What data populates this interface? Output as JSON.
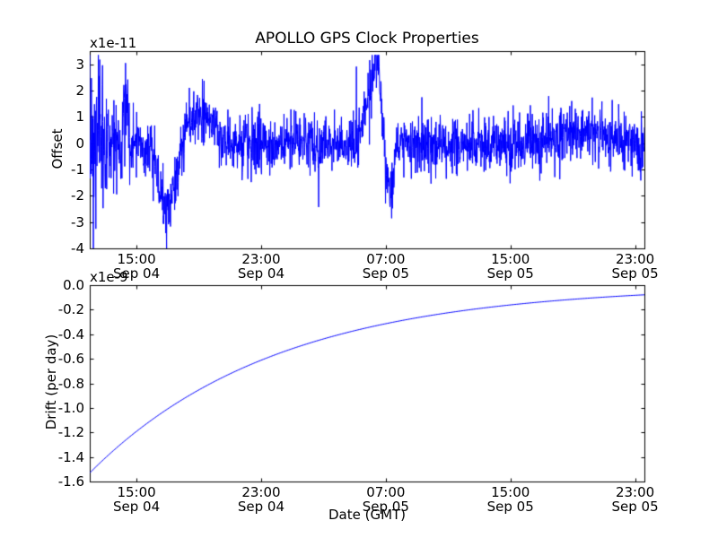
{
  "figure": {
    "background": "#ffffff",
    "line_color": "#0000ff",
    "axes_color": "#000000"
  },
  "chart_data": [
    {
      "type": "line",
      "title": "APOLLO GPS Clock Properties",
      "ylabel": "Offset",
      "y_scale_label": "x1e-11",
      "series_unit": "1e-11",
      "ylim": [
        -4,
        3.5
      ],
      "ytick_values": [
        3,
        2,
        1,
        0,
        -1,
        -2,
        -3,
        -4
      ],
      "ytick_labels": [
        "3",
        "2",
        "1",
        "0",
        "-1",
        "-2",
        "-3",
        "-4"
      ],
      "x_hours_range": [
        0,
        35.6
      ],
      "x_origin": "Sep 04 12:00 GMT",
      "grid": false,
      "legend": "none",
      "x_ticks": [
        {
          "hour": 3,
          "time": "15:00",
          "date": "Sep 04"
        },
        {
          "hour": 11,
          "time": "23:00",
          "date": "Sep 04"
        },
        {
          "hour": 19,
          "time": "07:00",
          "date": "Sep 05"
        },
        {
          "hour": 27,
          "time": "15:00",
          "date": "Sep 05"
        },
        {
          "hour": 35,
          "time": "23:00",
          "date": "Sep 05"
        }
      ],
      "signal": {
        "description": "noisy clock offset around 0 x1e-11 with excursions",
        "n_points": 2000,
        "seed": 7,
        "noise_std": 0.5,
        "noise_segments": [
          {
            "from": 0,
            "to": 1.1,
            "std": 1.6
          },
          {
            "from": 1.1,
            "to": 2.6,
            "std": 0.85
          },
          {
            "from": 4.3,
            "to": 6.1,
            "std": 0.6
          }
        ],
        "spike_prob": 0.025,
        "spike_scale": 2.4,
        "clip": [
          -4,
          3.35
        ],
        "features": [
          {
            "t": 2.3,
            "w": 0.12,
            "a": 2.0
          },
          {
            "t": 4.95,
            "w": 0.55,
            "a": -2.6
          },
          {
            "t": 7.0,
            "w": 0.9,
            "a": 1.1
          },
          {
            "t": 18.4,
            "w": 0.5,
            "a": 3.05
          },
          {
            "t": 19.15,
            "w": 0.3,
            "a": -2.7
          },
          {
            "t": 31.5,
            "w": 1.2,
            "a": 0.5
          }
        ]
      }
    },
    {
      "type": "line",
      "title": "",
      "ylabel": "Drift (per day)",
      "xlabel": "Date (GMT)",
      "y_scale_label": "x1e-9",
      "series_unit": "1e-9",
      "ylim": [
        -1.6,
        0.0
      ],
      "ytick_values": [
        0,
        -0.2,
        -0.4,
        -0.6,
        -0.8,
        -1.0,
        -1.2,
        -1.4,
        -1.6
      ],
      "ytick_labels": [
        "0.0",
        "-0.2",
        "-0.4",
        "-0.6",
        "-0.8",
        "-1.0",
        "-1.2",
        "-1.4",
        "-1.6"
      ],
      "x_hours_range": [
        0,
        35.6
      ],
      "x_origin": "Sep 04 12:00 GMT",
      "grid": false,
      "legend": "none",
      "x_ticks": [
        {
          "hour": 3,
          "time": "15:00",
          "date": "Sep 04"
        },
        {
          "hour": 11,
          "time": "23:00",
          "date": "Sep 04"
        },
        {
          "hour": 19,
          "time": "07:00",
          "date": "Sep 05"
        },
        {
          "hour": 27,
          "time": "15:00",
          "date": "Sep 05"
        },
        {
          "hour": 35,
          "time": "23:00",
          "date": "Sep 05"
        }
      ],
      "model": {
        "type": "exponential",
        "v0": -1.53,
        "tau_hours": 12
      },
      "points": [
        [
          0,
          -1.53
        ],
        [
          2,
          -1.295
        ],
        [
          4,
          -1.096
        ],
        [
          6,
          -0.928
        ],
        [
          8,
          -0.786
        ],
        [
          10,
          -0.665
        ],
        [
          12,
          -0.563
        ],
        [
          14,
          -0.476
        ],
        [
          16,
          -0.403
        ],
        [
          18,
          -0.341
        ],
        [
          20,
          -0.289
        ],
        [
          22,
          -0.245
        ],
        [
          24,
          -0.207
        ],
        [
          26,
          -0.175
        ],
        [
          28,
          -0.148
        ],
        [
          30,
          -0.126
        ],
        [
          32,
          -0.106
        ],
        [
          34,
          -0.09
        ],
        [
          35.6,
          -0.079
        ]
      ]
    }
  ]
}
